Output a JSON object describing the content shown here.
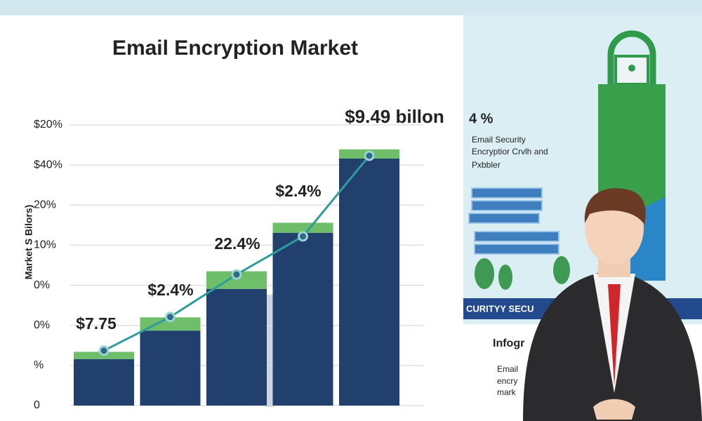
{
  "chart_data": {
    "type": "bar",
    "title": "Email Encryption Market",
    "y_label": "Market S Bilors)",
    "ylim": [
      0,
      7
    ],
    "yticks": [
      {
        "value": 0,
        "label": "0"
      },
      {
        "value": 1,
        "label": "%"
      },
      {
        "value": 2,
        "label": "0%"
      },
      {
        "value": 3,
        "label": "0%"
      },
      {
        "value": 4,
        "label": "10%"
      },
      {
        "value": 5,
        "label": "20%"
      },
      {
        "value": 6,
        "label": "$40%"
      },
      {
        "value": 7,
        "label": "$20%"
      }
    ],
    "grid": true,
    "series": [
      {
        "color": "#22406e",
        "values": [
          1.16,
          1.87,
          2.91,
          4.31,
          6.16
        ]
      },
      {
        "color": "#6fbf6a",
        "values": [
          0.18,
          0.33,
          0.44,
          0.25,
          0.23
        ]
      }
    ],
    "line": {
      "color": "#2e9c9c",
      "values": [
        1.37,
        2.21,
        3.27,
        4.22,
        6.23
      ]
    },
    "annotations": [
      "$7.75",
      "$2.4%",
      "22.4%",
      "$2.4%",
      "$9.49 billon"
    ]
  },
  "infographic": {
    "stat": "4 %",
    "lines": [
      "Email Security",
      "Encryptior Crvlh and",
      "Pxbbler"
    ],
    "banner": "CURITYY SECU",
    "heading": "Infogr",
    "body": [
      "Email",
      "encry",
      "mark"
    ]
  }
}
